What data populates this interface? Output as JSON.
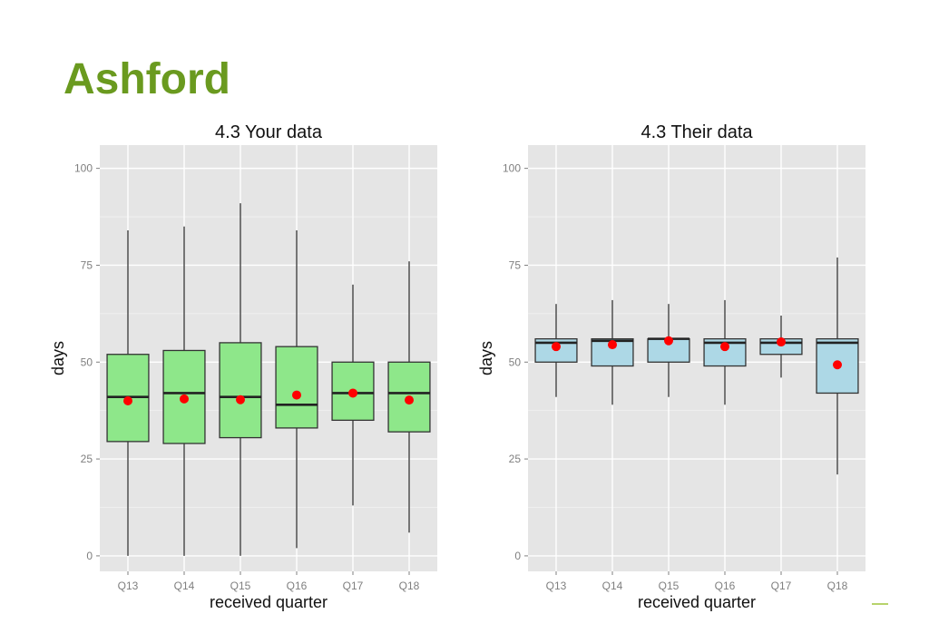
{
  "page": {
    "title": "Ashford"
  },
  "chart_data": [
    {
      "type": "box",
      "title": "4.3 Your data",
      "xlabel": "received quarter",
      "ylabel": "days",
      "ylim": [
        -4,
        106
      ],
      "yticks": [
        0,
        25,
        50,
        75,
        100
      ],
      "grid": true,
      "categories": [
        "Q13",
        "Q14",
        "Q15",
        "Q16",
        "Q17",
        "Q18"
      ],
      "boxes": [
        {
          "min": 0,
          "q1": 29.5,
          "median": 41,
          "q3": 52,
          "max": 84,
          "mean": 40
        },
        {
          "min": 0,
          "q1": 29,
          "median": 42,
          "q3": 53,
          "max": 85,
          "mean": 40.5
        },
        {
          "min": 0,
          "q1": 30.5,
          "median": 41,
          "q3": 55,
          "max": 91,
          "mean": 40.3
        },
        {
          "min": 2,
          "q1": 33,
          "median": 39,
          "q3": 54,
          "max": 84,
          "mean": 41.5
        },
        {
          "min": 13,
          "q1": 35,
          "median": 42,
          "q3": 50,
          "max": 70,
          "mean": 42
        },
        {
          "min": 6,
          "q1": 32,
          "median": 42,
          "q3": 50,
          "max": 76,
          "mean": 40.2
        }
      ],
      "colors": {
        "fill": "#8ee78a",
        "mean": "#ff0000"
      }
    },
    {
      "type": "box",
      "title": "4.3 Their data",
      "xlabel": "received quarter",
      "ylabel": "days",
      "ylim": [
        -4,
        106
      ],
      "yticks": [
        0,
        25,
        50,
        75,
        100
      ],
      "grid": true,
      "categories": [
        "Q13",
        "Q14",
        "Q15",
        "Q16",
        "Q17",
        "Q18"
      ],
      "boxes": [
        {
          "min": 41,
          "q1": 50,
          "median": 55,
          "q3": 56,
          "max": 65,
          "mean": 54
        },
        {
          "min": 39,
          "q1": 49,
          "median": 55.5,
          "q3": 56,
          "max": 66,
          "mean": 54.5
        },
        {
          "min": 41,
          "q1": 50,
          "median": 56,
          "q3": 56,
          "max": 65,
          "mean": 55.5
        },
        {
          "min": 39,
          "q1": 49,
          "median": 55,
          "q3": 56,
          "max": 66,
          "mean": 54
        },
        {
          "min": 46,
          "q1": 52,
          "median": 55,
          "q3": 56,
          "max": 62,
          "mean": 55.2
        },
        {
          "min": 21,
          "q1": 42,
          "median": 55,
          "q3": 56,
          "max": 77,
          "mean": 49.3
        }
      ],
      "colors": {
        "fill": "#add8e6",
        "mean": "#ff0000"
      }
    }
  ]
}
